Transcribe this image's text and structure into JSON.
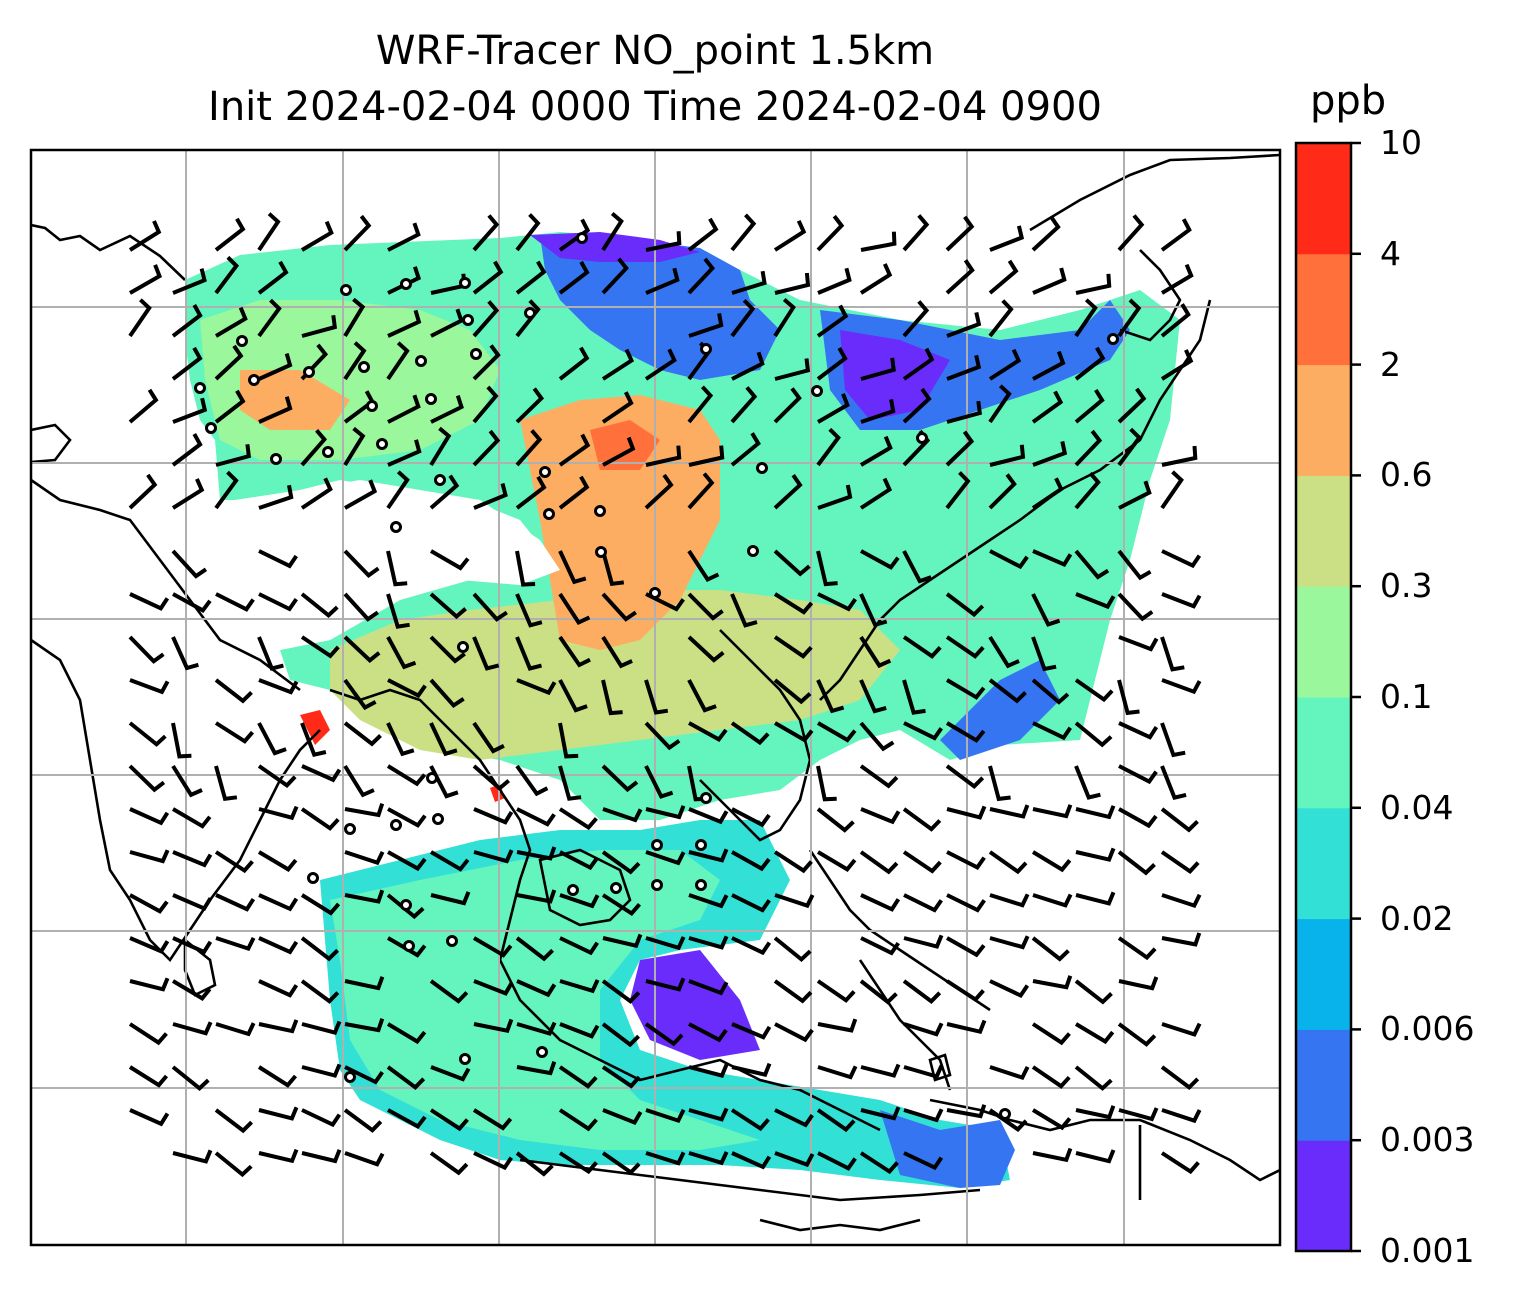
{
  "map": {
    "title_line1": "WRF-Tracer NO_point 1.5km",
    "title_line2": "Init 2024-02-04 0000 Time 2024-02-04 0900",
    "field": "NO point-source tracer at 1.5 km",
    "projection_gridlines": "shown",
    "wind_barbs": "shown",
    "station_markers": "open circles (calm wind)"
  },
  "colorbar": {
    "unit_label": "ppb",
    "ticks": [
      "0.001",
      "0.003",
      "0.006",
      "0.02",
      "0.04",
      "0.1",
      "0.3",
      "0.6",
      "2",
      "4",
      "10"
    ],
    "colors": [
      "#6a2cfa",
      "#3575f2",
      "#08b2ea",
      "#33e0d6",
      "#64f5bf",
      "#9af79b",
      "#cbe085",
      "#fcad62",
      "#ff703b",
      "#ff2a17"
    ]
  }
}
